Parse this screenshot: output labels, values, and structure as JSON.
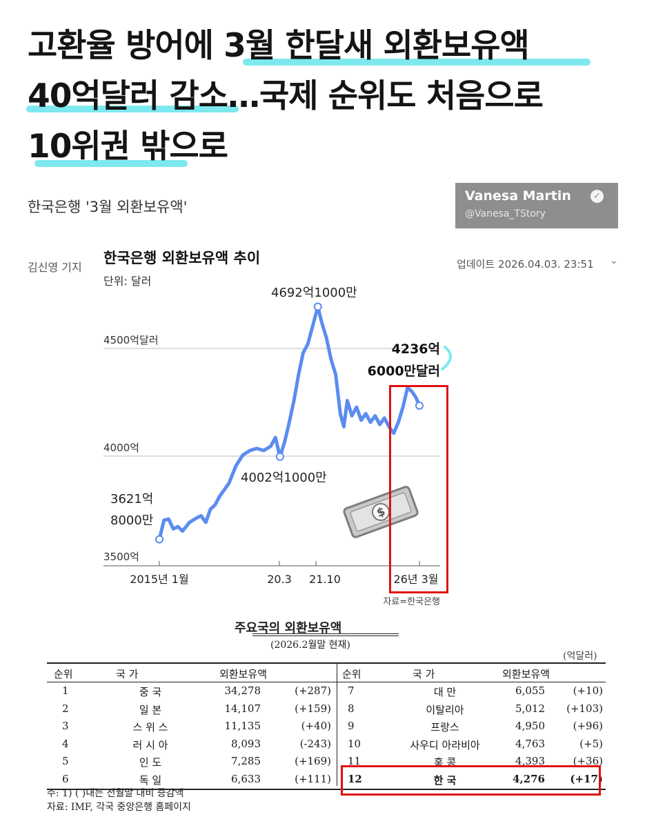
{
  "headline": {
    "line1": "고환율 방어에 3월 한달새 외환보유액",
    "line2": "40억달러 감소…국제 순위도 처음으로",
    "line3": "10위권 밖으로"
  },
  "subtitle": "한국은행 '3월 외환보유액'",
  "watermark": {
    "name": "Vanesa Martin",
    "handle": "@Vanesa_TStory",
    "verified_icon": "check-badge-icon"
  },
  "byline": "김신영 기지",
  "chart": {
    "title": "한국은행 외환보유액 추이",
    "unit": "단위: 달러",
    "updated": "업데이트 2026.04.03. 23:51",
    "source": "자료=한국은행",
    "ytick_labels": [
      "3500억",
      "4000억",
      "4500억달러"
    ],
    "xtick_labels": [
      "2015년 1월",
      "20.3",
      "21.10",
      "26년 3월"
    ],
    "annotations": {
      "start_l1": "3621억",
      "start_l2": "8000만",
      "dip": "4002억1000만",
      "peak": "4692억1000만",
      "end_l1": "4236억",
      "end_l2": "6000만달러"
    },
    "line_color": "#5b8cf0"
  },
  "chart_data": {
    "type": "line",
    "title": "한국은행 외환보유액 추이",
    "ylabel": "단위: 달러",
    "ylim": [
      3500,
      4800
    ],
    "y_unit": "억달러",
    "series": [
      {
        "values": [
          [
            2015.0,
            3622
          ],
          [
            2015.2,
            3710
          ],
          [
            2015.4,
            3715
          ],
          [
            2015.6,
            3670
          ],
          [
            2015.8,
            3680
          ],
          [
            2016.0,
            3660
          ],
          [
            2016.3,
            3700
          ],
          [
            2016.6,
            3720
          ],
          [
            2016.8,
            3730
          ],
          [
            2017.0,
            3700
          ],
          [
            2017.2,
            3760
          ],
          [
            2017.4,
            3780
          ],
          [
            2017.6,
            3820
          ],
          [
            2017.8,
            3850
          ],
          [
            2018.0,
            3880
          ],
          [
            2018.3,
            3960
          ],
          [
            2018.6,
            4010
          ],
          [
            2018.9,
            4030
          ],
          [
            2019.2,
            4040
          ],
          [
            2019.5,
            4030
          ],
          [
            2019.8,
            4050
          ],
          [
            2020.0,
            4090
          ],
          [
            2020.2,
            4002
          ],
          [
            2020.4,
            4070
          ],
          [
            2020.6,
            4160
          ],
          [
            2020.8,
            4260
          ],
          [
            2021.0,
            4380
          ],
          [
            2021.2,
            4480
          ],
          [
            2021.4,
            4520
          ],
          [
            2021.6,
            4600
          ],
          [
            2021.83,
            4692
          ],
          [
            2022.0,
            4620
          ],
          [
            2022.2,
            4550
          ],
          [
            2022.4,
            4450
          ],
          [
            2022.6,
            4380
          ],
          [
            2022.8,
            4200
          ],
          [
            2022.95,
            4140
          ],
          [
            2023.1,
            4260
          ],
          [
            2023.3,
            4190
          ],
          [
            2023.5,
            4230
          ],
          [
            2023.7,
            4170
          ],
          [
            2023.9,
            4200
          ],
          [
            2024.1,
            4160
          ],
          [
            2024.3,
            4190
          ],
          [
            2024.5,
            4150
          ],
          [
            2024.7,
            4180
          ],
          [
            2024.9,
            4140
          ],
          [
            2025.1,
            4110
          ],
          [
            2025.3,
            4160
          ],
          [
            2025.5,
            4230
          ],
          [
            2025.7,
            4320
          ],
          [
            2025.9,
            4300
          ],
          [
            2026.05,
            4276
          ],
          [
            2026.21,
            4237
          ]
        ]
      }
    ],
    "annotations": [
      {
        "label": "3621억 8000만",
        "x": 2015.0,
        "y": 3622
      },
      {
        "label": "4002억1000만",
        "x": 2020.2,
        "y": 4002
      },
      {
        "label": "4692억1000만",
        "x": 2021.83,
        "y": 4692
      },
      {
        "label": "4236억 6000만달러",
        "x": 2026.21,
        "y": 4237
      }
    ],
    "xticks": [
      "2015년 1월",
      "20.3",
      "21.10",
      "26년 3월"
    ],
    "grid": "horizontal reference lines at 3500, 4000, 4500"
  },
  "table": {
    "title": "주요국의 외환보유액",
    "date": "(2026.2월말 현재)",
    "unit": "(억달러)",
    "headers": {
      "rank": "순위",
      "country": "국 가",
      "reserves": "외환보유액"
    },
    "rows": [
      {
        "rank": "1",
        "country": "중 국",
        "value": "34,278",
        "change": "(+287)"
      },
      {
        "rank": "2",
        "country": "일 본",
        "value": "14,107",
        "change": "(+159)"
      },
      {
        "rank": "3",
        "country": "스 위 스",
        "value": "11,135",
        "change": "(+40)"
      },
      {
        "rank": "4",
        "country": "러 시 아",
        "value": "8,093",
        "change": "(-243)"
      },
      {
        "rank": "5",
        "country": "인 도",
        "value": "7,285",
        "change": "(+169)"
      },
      {
        "rank": "6",
        "country": "독 일",
        "value": "6,633",
        "change": "(+111)"
      },
      {
        "rank": "7",
        "country": "대 만",
        "value": "6,055",
        "change": "(+10)"
      },
      {
        "rank": "8",
        "country": "이탈리아",
        "value": "5,012",
        "change": "(+103)"
      },
      {
        "rank": "9",
        "country": "프랑스",
        "value": "4,950",
        "change": "(+96)"
      },
      {
        "rank": "10",
        "country": "사우디 아라비아",
        "value": "4,763",
        "change": "(+5)"
      },
      {
        "rank": "11",
        "country": "홍 콩",
        "value": "4,393",
        "change": "(+36)"
      },
      {
        "rank": "12",
        "country": "한 국",
        "value": "4,276",
        "change": "(+17)"
      }
    ],
    "note": "주: 1) ( )내는 전월말 대비 증감액",
    "source": "자료: IMF, 각국 중앙은행 홈페이지"
  },
  "colors": {
    "highlight": "#7ee8ef",
    "line": "#5b8cf0",
    "red_box": "#e01010"
  }
}
